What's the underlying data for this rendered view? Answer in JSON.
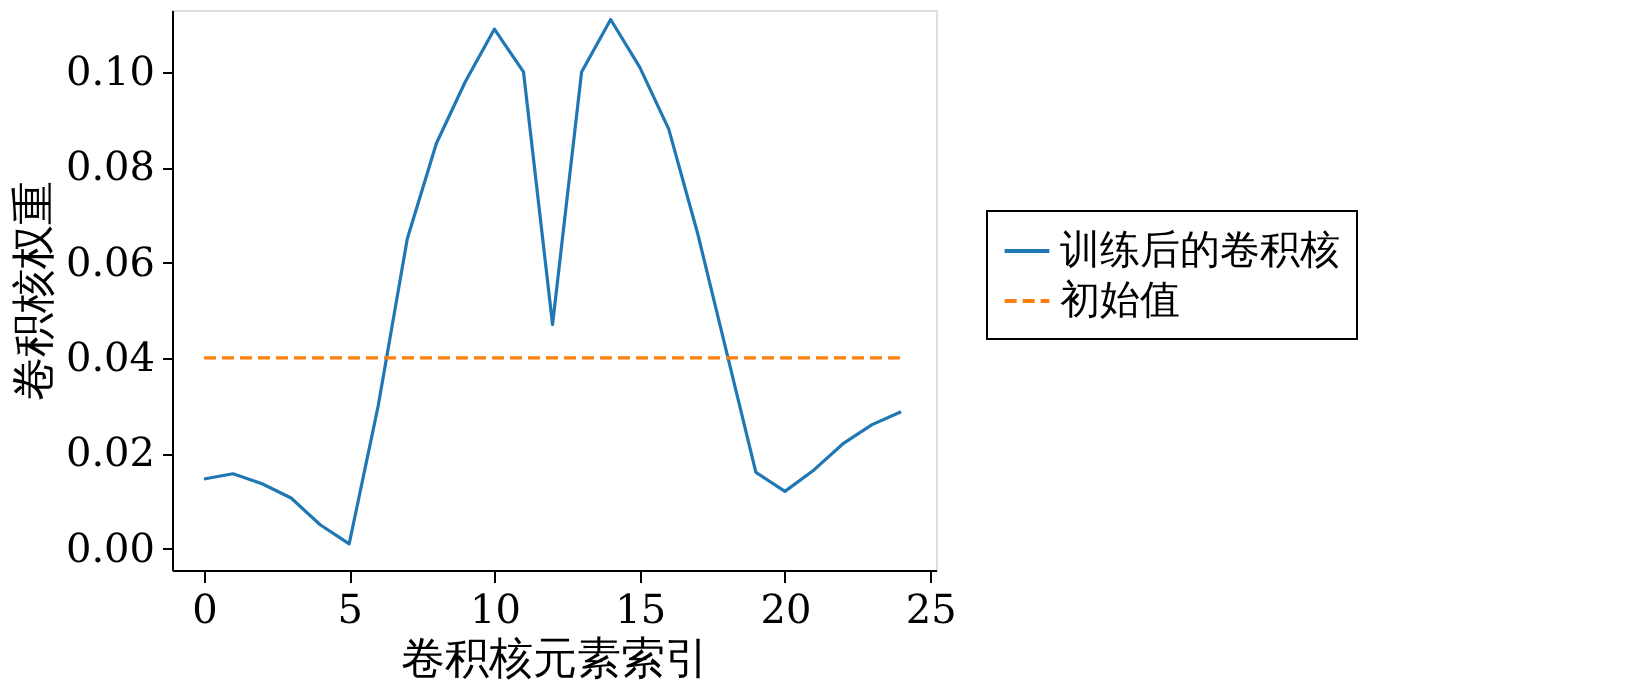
{
  "chart_data": {
    "type": "line",
    "xlabel": "卷积核元素索引",
    "ylabel": "卷积核权重",
    "x": [
      0,
      1,
      2,
      3,
      4,
      5,
      6,
      7,
      8,
      9,
      10,
      11,
      12,
      13,
      14,
      15,
      16,
      17,
      18,
      19,
      20,
      21,
      22,
      23,
      24
    ],
    "series": [
      {
        "name": "训练后的卷积核",
        "color": "#1f77b4",
        "line_style": "solid",
        "values": [
          0.0146,
          0.0157,
          0.0136,
          0.0106,
          0.005,
          0.001,
          0.03,
          0.065,
          0.085,
          0.098,
          0.109,
          0.1,
          0.047,
          0.1,
          0.111,
          0.101,
          0.088,
          0.066,
          0.041,
          0.016,
          0.012,
          0.0165,
          0.022,
          0.026,
          0.0287
        ]
      },
      {
        "name": "初始值",
        "color": "#ff7f0e",
        "line_style": "dashed",
        "values": [
          0.04,
          0.04,
          0.04,
          0.04,
          0.04,
          0.04,
          0.04,
          0.04,
          0.04,
          0.04,
          0.04,
          0.04,
          0.04,
          0.04,
          0.04,
          0.04,
          0.04,
          0.04,
          0.04,
          0.04,
          0.04,
          0.04,
          0.04,
          0.04,
          0.04
        ]
      }
    ],
    "xlim": [
      -1.1,
      25.2
    ],
    "xticks": [
      0,
      5,
      10,
      15,
      20,
      25
    ],
    "ylim": [
      -0.0045,
      0.113
    ],
    "yticks": [
      {
        "value": 0,
        "label": "0.00"
      },
      {
        "value": 0.02,
        "label": "0.02"
      },
      {
        "value": 0.04,
        "label": "0.04"
      },
      {
        "value": 0.06,
        "label": "0.06"
      },
      {
        "value": 0.08,
        "label": "0.08"
      },
      {
        "value": 0.1,
        "label": "0.10"
      }
    ],
    "grid": false,
    "legend": "right",
    "marker": "none"
  }
}
